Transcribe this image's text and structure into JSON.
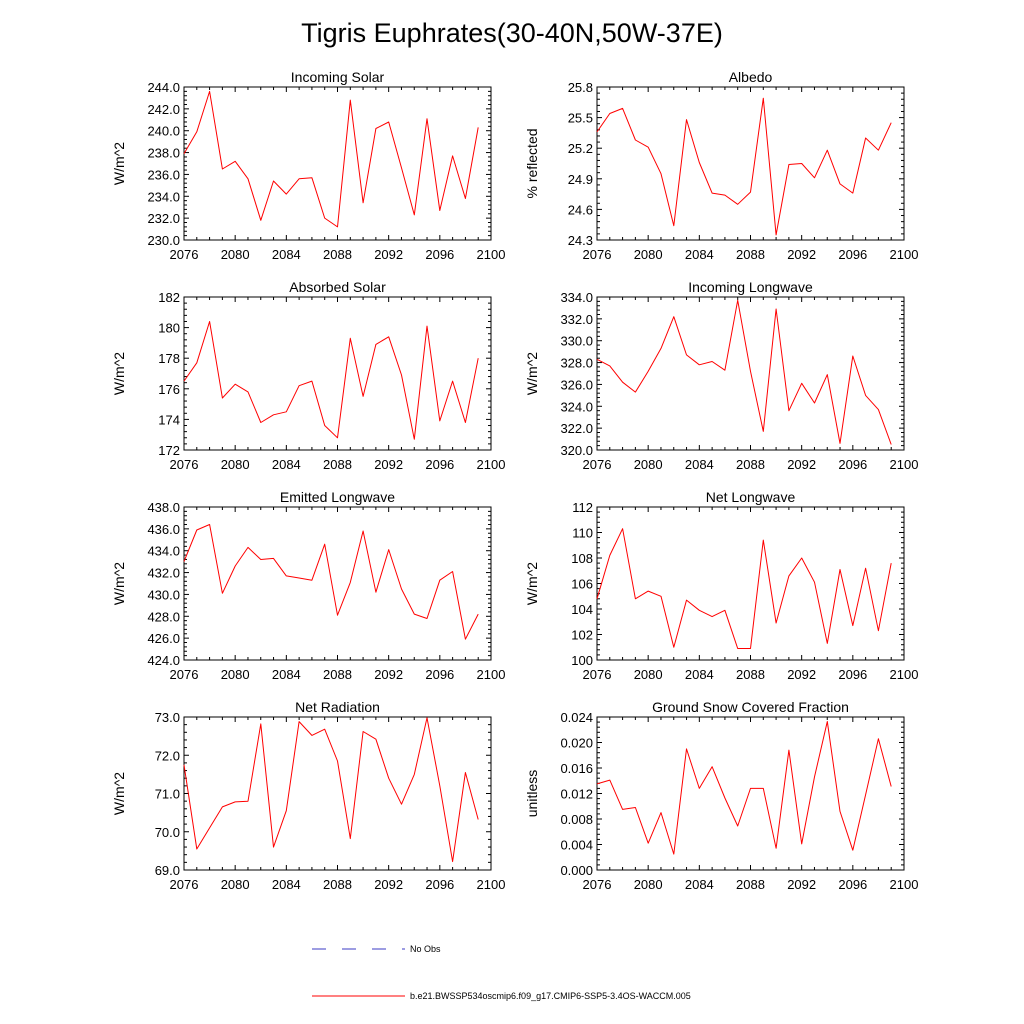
{
  "figure_title": "Tigris Euphrates(30-40N,50W-37E)",
  "colors": {
    "model_line": "#ff0000",
    "obs_line": "#3b3bc4",
    "axes": "#000000"
  },
  "legend": {
    "obs_label": "No Obs",
    "model_label": "b.e21.BWSSP534oscmip6.f09_g17.CMIP6-SSP5-3.4OS-WACCM.005"
  },
  "chart_data": [
    {
      "type": "line",
      "title": "Incoming Solar",
      "ylabel": "W/m^2",
      "xlim": [
        2076,
        2100
      ],
      "ylim": [
        230,
        244
      ],
      "xticks": [
        "2076",
        "2080",
        "2084",
        "2088",
        "2092",
        "2096",
        "2100"
      ],
      "yticks": [
        "230.0",
        "232.0",
        "234.0",
        "236.0",
        "238.0",
        "240.0",
        "242.0",
        "244.0"
      ],
      "x": [
        2076,
        2077,
        2078,
        2079,
        2080,
        2081,
        2082,
        2083,
        2084,
        2085,
        2086,
        2087,
        2088,
        2089,
        2090,
        2091,
        2092,
        2093,
        2094,
        2095,
        2096,
        2097,
        2098,
        2099
      ],
      "values": [
        237.9,
        239.9,
        243.6,
        236.5,
        237.2,
        235.6,
        231.8,
        235.4,
        234.2,
        235.6,
        235.7,
        232.0,
        231.2,
        242.8,
        233.4,
        240.2,
        240.8,
        236.6,
        232.3,
        241.1,
        232.7,
        237.7,
        233.8,
        240.3
      ]
    },
    {
      "type": "line",
      "title": "Albedo",
      "ylabel": "% reflected",
      "xlim": [
        2076,
        2100
      ],
      "ylim": [
        24.3,
        25.8
      ],
      "xticks": [
        "2076",
        "2080",
        "2084",
        "2088",
        "2092",
        "2096",
        "2100"
      ],
      "yticks": [
        "24.3",
        "24.6",
        "24.9",
        "25.2",
        "25.5",
        "25.8"
      ],
      "x": [
        2076,
        2077,
        2078,
        2079,
        2080,
        2081,
        2082,
        2083,
        2084,
        2085,
        2086,
        2087,
        2088,
        2089,
        2090,
        2091,
        2092,
        2093,
        2094,
        2095,
        2096,
        2097,
        2098,
        2099
      ],
      "values": [
        25.36,
        25.54,
        25.59,
        25.28,
        25.21,
        24.95,
        24.44,
        25.48,
        25.06,
        24.76,
        24.74,
        24.65,
        24.77,
        25.69,
        24.35,
        25.04,
        25.05,
        24.91,
        25.18,
        24.85,
        24.76,
        25.3,
        25.18,
        25.45
      ]
    },
    {
      "type": "line",
      "title": "Absorbed Solar",
      "ylabel": "W/m^2",
      "xlim": [
        2076,
        2100
      ],
      "ylim": [
        172,
        182
      ],
      "xticks": [
        "2076",
        "2080",
        "2084",
        "2088",
        "2092",
        "2096",
        "2100"
      ],
      "yticks": [
        "172",
        "174",
        "176",
        "178",
        "180",
        "182"
      ],
      "x": [
        2076,
        2077,
        2078,
        2079,
        2080,
        2081,
        2082,
        2083,
        2084,
        2085,
        2086,
        2087,
        2088,
        2089,
        2090,
        2091,
        2092,
        2093,
        2094,
        2095,
        2096,
        2097,
        2098,
        2099
      ],
      "values": [
        176.5,
        177.7,
        180.4,
        175.4,
        176.3,
        175.8,
        173.8,
        174.3,
        174.5,
        176.2,
        176.5,
        173.6,
        172.8,
        179.3,
        175.5,
        178.9,
        179.4,
        176.9,
        172.7,
        180.1,
        173.9,
        176.5,
        173.8,
        178.0
      ]
    },
    {
      "type": "line",
      "title": "Incoming Longwave",
      "ylabel": "W/m^2",
      "xlim": [
        2076,
        2100
      ],
      "ylim": [
        320,
        334
      ],
      "xticks": [
        "2076",
        "2080",
        "2084",
        "2088",
        "2092",
        "2096",
        "2100"
      ],
      "yticks": [
        "320.0",
        "322.0",
        "324.0",
        "326.0",
        "328.0",
        "330.0",
        "332.0",
        "334.0"
      ],
      "x": [
        2076,
        2077,
        2078,
        2079,
        2080,
        2081,
        2082,
        2083,
        2084,
        2085,
        2086,
        2087,
        2088,
        2089,
        2090,
        2091,
        2092,
        2093,
        2094,
        2095,
        2096,
        2097,
        2098,
        2099
      ],
      "values": [
        328.3,
        327.7,
        326.2,
        325.3,
        327.2,
        329.3,
        332.2,
        328.7,
        327.8,
        328.1,
        327.3,
        333.7,
        327.2,
        321.7,
        332.9,
        323.6,
        326.1,
        324.3,
        326.9,
        320.6,
        328.6,
        325.0,
        323.7,
        320.5
      ]
    },
    {
      "type": "line",
      "title": "Emitted Longwave",
      "ylabel": "W/m^2",
      "xlim": [
        2076,
        2100
      ],
      "ylim": [
        424,
        438
      ],
      "xticks": [
        "2076",
        "2080",
        "2084",
        "2088",
        "2092",
        "2096",
        "2100"
      ],
      "yticks": [
        "424.0",
        "426.0",
        "428.0",
        "430.0",
        "432.0",
        "434.0",
        "436.0",
        "438.0"
      ],
      "x": [
        2076,
        2077,
        2078,
        2079,
        2080,
        2081,
        2082,
        2083,
        2084,
        2085,
        2086,
        2087,
        2088,
        2089,
        2090,
        2091,
        2092,
        2093,
        2094,
        2095,
        2096,
        2097,
        2098,
        2099
      ],
      "values": [
        433.0,
        435.9,
        436.4,
        430.1,
        432.6,
        434.3,
        433.2,
        433.3,
        431.7,
        431.5,
        431.3,
        434.6,
        428.1,
        431.1,
        435.8,
        430.2,
        434.1,
        430.5,
        428.2,
        427.8,
        431.3,
        432.1,
        425.9,
        428.2
      ]
    },
    {
      "type": "line",
      "title": "Net Longwave",
      "ylabel": "W/m^2",
      "xlim": [
        2076,
        2100
      ],
      "ylim": [
        100,
        112
      ],
      "xticks": [
        "2076",
        "2080",
        "2084",
        "2088",
        "2092",
        "2096",
        "2100"
      ],
      "yticks": [
        "100",
        "102",
        "104",
        "106",
        "108",
        "110",
        "112"
      ],
      "x": [
        2076,
        2077,
        2078,
        2079,
        2080,
        2081,
        2082,
        2083,
        2084,
        2085,
        2086,
        2087,
        2088,
        2089,
        2090,
        2091,
        2092,
        2093,
        2094,
        2095,
        2096,
        2097,
        2098,
        2099
      ],
      "values": [
        104.8,
        108.2,
        110.3,
        104.8,
        105.4,
        105.0,
        101.0,
        104.7,
        103.9,
        103.4,
        103.9,
        100.9,
        100.9,
        109.4,
        102.9,
        106.6,
        108.0,
        106.1,
        101.3,
        107.1,
        102.7,
        107.2,
        102.3,
        107.6
      ]
    },
    {
      "type": "line",
      "title": "Net Radiation",
      "ylabel": "W/m^2",
      "xlim": [
        2076,
        2100
      ],
      "ylim": [
        69,
        73
      ],
      "xticks": [
        "2076",
        "2080",
        "2084",
        "2088",
        "2092",
        "2096",
        "2100"
      ],
      "yticks": [
        "69.0",
        "70.0",
        "71.0",
        "72.0",
        "73.0"
      ],
      "x": [
        2076,
        2077,
        2078,
        2079,
        2080,
        2081,
        2082,
        2083,
        2084,
        2085,
        2086,
        2087,
        2088,
        2089,
        2090,
        2091,
        2092,
        2093,
        2094,
        2095,
        2096,
        2097,
        2098,
        2099
      ],
      "values": [
        71.75,
        69.55,
        70.1,
        70.65,
        70.78,
        70.8,
        72.82,
        69.6,
        70.55,
        72.88,
        72.52,
        72.68,
        71.85,
        69.82,
        72.62,
        72.42,
        71.4,
        70.72,
        71.5,
        72.98,
        71.2,
        69.22,
        71.55,
        70.32
      ]
    },
    {
      "type": "line",
      "title": "Ground Snow Covered Fraction",
      "ylabel": "unitless",
      "xlim": [
        2076,
        2100
      ],
      "ylim": [
        0,
        0.024
      ],
      "xticks": [
        "2076",
        "2080",
        "2084",
        "2088",
        "2092",
        "2096",
        "2100"
      ],
      "yticks": [
        "0.000",
        "0.004",
        "0.008",
        "0.012",
        "0.016",
        "0.020",
        "0.024"
      ],
      "x": [
        2076,
        2077,
        2078,
        2079,
        2080,
        2081,
        2082,
        2083,
        2084,
        2085,
        2086,
        2087,
        2088,
        2089,
        2090,
        2091,
        2092,
        2093,
        2094,
        2095,
        2096,
        2097,
        2098,
        2099
      ],
      "values": [
        0.0135,
        0.0141,
        0.0095,
        0.0098,
        0.0042,
        0.009,
        0.0025,
        0.019,
        0.0128,
        0.0162,
        0.0113,
        0.0069,
        0.0128,
        0.0128,
        0.0034,
        0.0188,
        0.0041,
        0.0146,
        0.0233,
        0.0092,
        0.0031,
        0.0118,
        0.0206,
        0.0131
      ]
    }
  ]
}
